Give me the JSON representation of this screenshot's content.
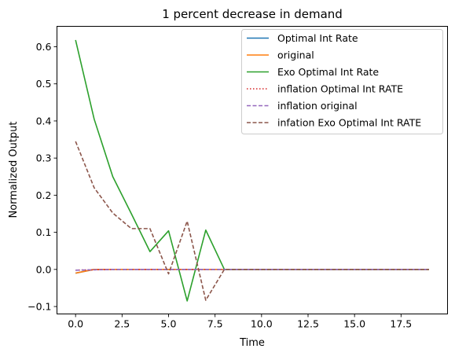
{
  "chart_data": {
    "type": "line",
    "title": "1 percent decrease in demand",
    "xlabel": "Time",
    "ylabel": "Normalized Output",
    "xlim": [
      -1.0,
      20.0
    ],
    "ylim": [
      -0.12,
      0.655
    ],
    "x_ticks": [
      0.0,
      2.5,
      5.0,
      7.5,
      10.0,
      12.5,
      15.0,
      17.5
    ],
    "x_tick_labels": [
      "0.0",
      "2.5",
      "5.0",
      "7.5",
      "10.0",
      "12.5",
      "15.0",
      "17.5"
    ],
    "y_ticks": [
      -0.1,
      0.0,
      0.1,
      0.2,
      0.3,
      0.4,
      0.5,
      0.6
    ],
    "y_tick_labels": [
      "−0.1",
      "0.0",
      "0.1",
      "0.2",
      "0.3",
      "0.4",
      "0.5",
      "0.6"
    ],
    "grid": false,
    "legend_position": "top-right",
    "x": [
      0,
      1,
      2,
      3,
      4,
      5,
      6,
      7,
      8,
      9,
      10,
      11,
      12,
      13,
      14,
      15,
      16,
      17,
      18,
      19
    ],
    "series": [
      {
        "name": "Optimal Int Rate",
        "color": "#1f77b4",
        "style": "solid",
        "values": [
          -0.01,
          0,
          0,
          0,
          0,
          0,
          0,
          0,
          0,
          0,
          0,
          0,
          0,
          0,
          0,
          0,
          0,
          0,
          0,
          0
        ]
      },
      {
        "name": "original",
        "color": "#ff7f0e",
        "style": "solid",
        "values": [
          -0.01,
          0,
          0,
          0,
          0,
          0,
          0,
          0,
          0,
          0,
          0,
          0,
          0,
          0,
          0,
          0,
          0,
          0,
          0,
          0
        ]
      },
      {
        "name": "Exo Optimal Int Rate",
        "color": "#2ca02c",
        "style": "solid",
        "values": [
          0.618,
          0.405,
          0.25,
          0.15,
          0.048,
          0.104,
          -0.085,
          0.106,
          0,
          0,
          0,
          0,
          0,
          0,
          0,
          0,
          0,
          0,
          0,
          0
        ]
      },
      {
        "name": "inflation Optimal Int RATE",
        "color": "#d62728",
        "style": "dotted",
        "values": [
          -0.002,
          -0.001,
          0,
          0,
          0,
          0,
          0,
          0,
          0,
          0,
          0,
          0,
          0,
          0,
          0,
          0,
          0,
          0,
          0,
          0
        ]
      },
      {
        "name": "inflation original",
        "color": "#9467bd",
        "style": "dashed",
        "values": [
          -0.002,
          -0.001,
          0,
          0,
          0,
          0,
          0,
          0,
          0,
          0,
          0,
          0,
          0,
          0,
          0,
          0,
          0,
          0,
          0,
          0
        ]
      },
      {
        "name": "infation Exo Optimal Int RATE",
        "color": "#8c564b",
        "style": "dashed",
        "values": [
          0.345,
          0.22,
          0.152,
          0.11,
          0.11,
          -0.012,
          0.13,
          -0.083,
          0,
          0,
          0,
          0,
          0,
          0,
          0,
          0,
          0,
          0,
          0,
          0
        ]
      }
    ]
  }
}
